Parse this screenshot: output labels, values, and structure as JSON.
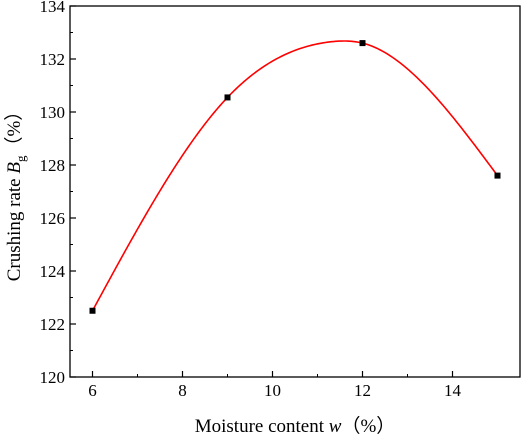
{
  "chart_data": {
    "type": "scatter",
    "xlabel": "Moisture content",
    "xlabel_var": "w",
    "xlabel_unit": "（%）",
    "ylabel": "Crushing rate",
    "ylabel_var": "B",
    "ylabel_sub": "g",
    "ylabel_unit": "（%）",
    "xlim": [
      5.5,
      15.5
    ],
    "ylim": [
      120,
      134
    ],
    "xticks": [
      6,
      8,
      10,
      12,
      14
    ],
    "yticks": [
      120,
      122,
      124,
      126,
      128,
      130,
      132,
      134
    ],
    "grid": false,
    "series": [
      {
        "x": [
          6,
          9,
          12,
          15
        ],
        "y": [
          122.5,
          130.55,
          132.6,
          127.6
        ],
        "marker": "square",
        "color": "#000000"
      }
    ],
    "fit_curve": {
      "color": "#ff0000",
      "x_range": [
        6,
        15
      ],
      "peak_x": 11.3,
      "peak_y": 132.65
    }
  }
}
